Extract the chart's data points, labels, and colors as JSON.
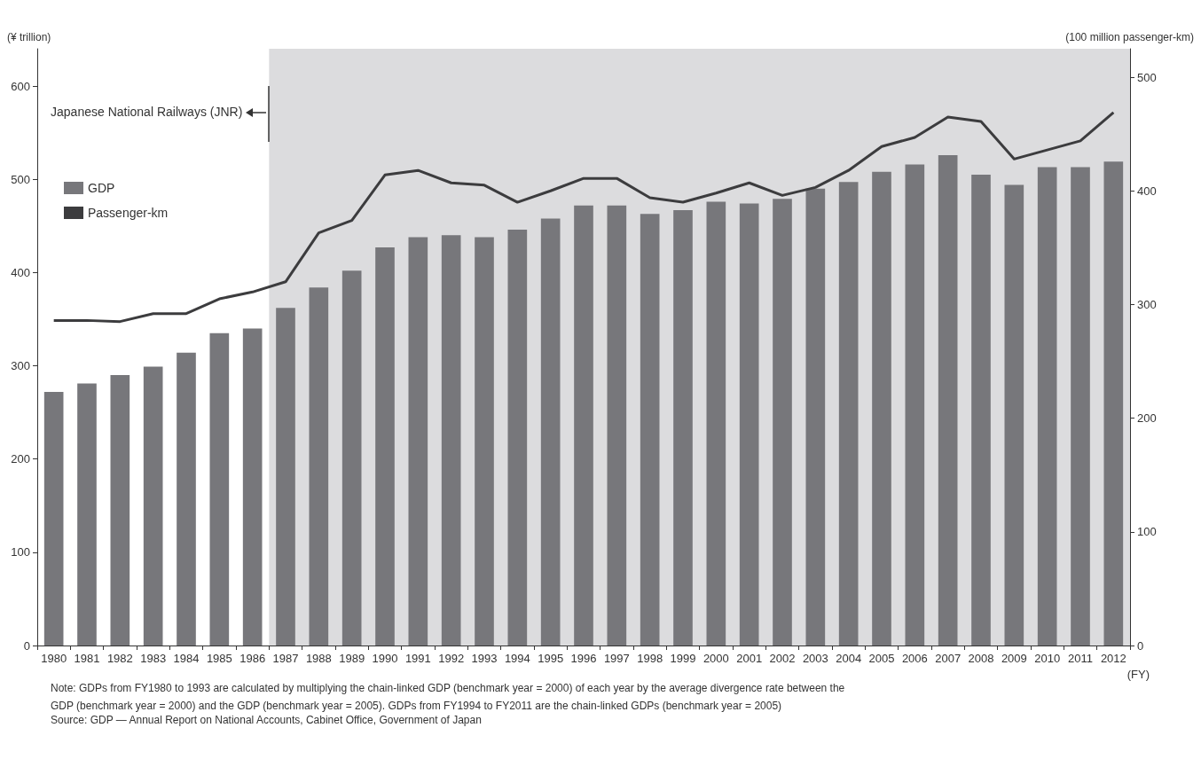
{
  "chart_data": {
    "type": "bar",
    "xlabel": "(FY)",
    "ylabel": "(¥ trillion)",
    "y2label": "(100 million passenger-km)",
    "categories": [
      "1980",
      "1981",
      "1982",
      "1983",
      "1984",
      "1985",
      "1986",
      "1987",
      "1988",
      "1989",
      "1990",
      "1991",
      "1992",
      "1993",
      "1994",
      "1995",
      "1996",
      "1997",
      "1998",
      "1999",
      "2000",
      "2001",
      "2002",
      "2003",
      "2004",
      "2005",
      "2006",
      "2007",
      "2008",
      "2009",
      "2010",
      "2011",
      "2012"
    ],
    "series": [
      {
        "name": "GDP",
        "color": "#77777b",
        "values": [
          272,
          281,
          290,
          299,
          314,
          335,
          340,
          362,
          384,
          402,
          427,
          438,
          440,
          438,
          446,
          458,
          472,
          472,
          463,
          467,
          476,
          474,
          479,
          490,
          497,
          508,
          516,
          526,
          505,
          494,
          513,
          513,
          519
        ]
      },
      {
        "name": "Passenger-km",
        "type": "line",
        "axis": "y2",
        "color": "#3c3c3e",
        "values": [
          286,
          286,
          285,
          292,
          292,
          305,
          311,
          320,
          363,
          374,
          414,
          418,
          407,
          405,
          390,
          400,
          411,
          411,
          394,
          390,
          398,
          407,
          396,
          403,
          418,
          439,
          447,
          465,
          461,
          428,
          436,
          444,
          469
        ]
      }
    ],
    "ylim": [
      0,
      640
    ],
    "yticks": [
      0,
      100,
      200,
      300,
      400,
      500,
      600
    ],
    "y2lim": [
      0,
      525
    ],
    "y2ticks": [
      0,
      100,
      200,
      300,
      400,
      500
    ],
    "bands": [
      {
        "axis": "x",
        "from": "1987",
        "to": "2012",
        "color": "#dcdcde"
      }
    ],
    "grid": false,
    "legend": "top left",
    "marker": "none",
    "line_style": "solid",
    "annotations": [
      "Japanese National Railways (JNR)",
      "Note: GDPs from FY1980 to 1993 are calculated by multiplying the chain-linked GDP (benchmark year = 2000) of each year by the average divergence rate between the GDP (benchmark year = 2000) and the GDP (benchmark year = 2005). GDPs from FY1994 to FY2011 are the chain-linked GDPs (benchmark year = 2005)",
      "Source: GDP — Annual Report on National Accounts, Cabinet Office, Government of Japan"
    ]
  }
}
